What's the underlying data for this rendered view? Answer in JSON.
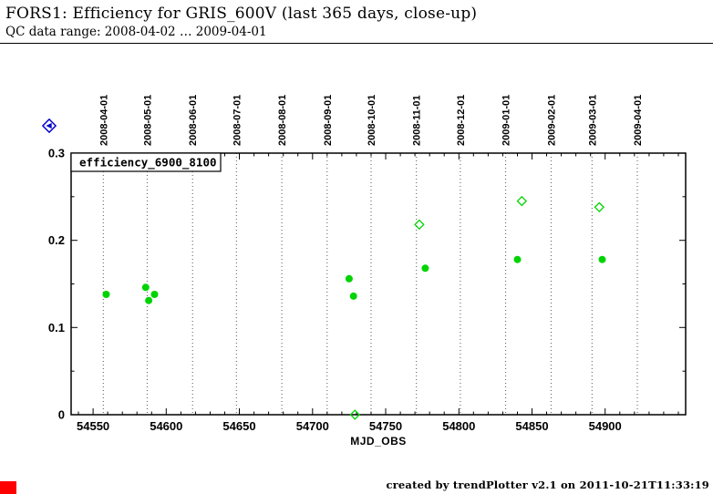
{
  "header": {
    "title": "FORS1: Efficiency for GRIS_600V (last 365 days, close-up)",
    "subtitle": "QC data range: 2008-04-02 … 2009-04-01"
  },
  "nav_icon": {
    "name": "blue-diamond-arrow-icon",
    "color": "#0000cc"
  },
  "chart_data": {
    "type": "scatter",
    "title": "",
    "xlabel": "MJD_OBS",
    "ylabel": "",
    "series_label": "efficiency_6900_8100",
    "xlim": [
      54535,
      54955
    ],
    "ylim": [
      0,
      0.3
    ],
    "x_ticks": [
      54550,
      54600,
      54650,
      54700,
      54750,
      54800,
      54850,
      54900
    ],
    "x_minor_step": 10,
    "y_ticks": [
      0,
      0.1,
      0.2,
      0.3
    ],
    "y_minor_step": 0.05,
    "grid": "vertical dotted lines at month boundaries",
    "month_gridlines": [
      {
        "label": "2008-04-01",
        "mjd": 54557
      },
      {
        "label": "2008-05-01",
        "mjd": 54587
      },
      {
        "label": "2008-06-01",
        "mjd": 54618
      },
      {
        "label": "2008-07-01",
        "mjd": 54648
      },
      {
        "label": "2008-08-01",
        "mjd": 54679
      },
      {
        "label": "2008-09-01",
        "mjd": 54710
      },
      {
        "label": "2008-10-01",
        "mjd": 54740
      },
      {
        "label": "2008-11-01",
        "mjd": 54771
      },
      {
        "label": "2008-12-01",
        "mjd": 54801
      },
      {
        "label": "2009-01-01",
        "mjd": 54832
      },
      {
        "label": "2009-02-01",
        "mjd": 54863
      },
      {
        "label": "2009-03-01",
        "mjd": 54891
      },
      {
        "label": "2009-04-01",
        "mjd": 54922
      }
    ],
    "series": [
      {
        "name": "filled-circles",
        "marker": "circle",
        "filled": true,
        "color": "#00d400",
        "points": [
          [
            54559,
            0.138
          ],
          [
            54586,
            0.146
          ],
          [
            54588,
            0.131
          ],
          [
            54592,
            0.138
          ],
          [
            54725,
            0.156
          ],
          [
            54728,
            0.136
          ],
          [
            54777,
            0.168
          ],
          [
            54840,
            0.178
          ],
          [
            54898,
            0.178
          ]
        ]
      },
      {
        "name": "open-diamonds",
        "marker": "diamond",
        "filled": false,
        "color": "#00d400",
        "points": [
          [
            54729,
            0.0
          ],
          [
            54773,
            0.218
          ],
          [
            54843,
            0.245
          ],
          [
            54896,
            0.238
          ]
        ]
      }
    ]
  },
  "footer": {
    "credit": "created by trendPlotter v2.1 on 2011-10-21T11:33:19",
    "marker_color": "#ff0000"
  }
}
